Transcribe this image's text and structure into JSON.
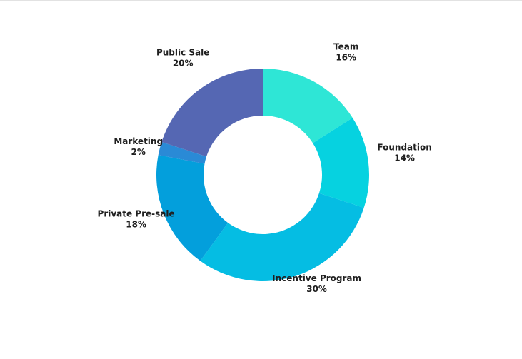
{
  "chart_data": {
    "type": "pie",
    "title": "",
    "variant": "donut",
    "slices": [
      {
        "label": "Team",
        "value": 16,
        "value_label": "16%",
        "color": "#2ee6d6"
      },
      {
        "label": "Foundation",
        "value": 14,
        "value_label": "14%",
        "color": "#06d2e0"
      },
      {
        "label": "Incentive Program",
        "value": 30,
        "value_label": "30%",
        "color": "#05bde3"
      },
      {
        "label": "Private Pre-sale",
        "value": 18,
        "value_label": "18%",
        "color": "#039fdc"
      },
      {
        "label": "Marketing",
        "value": 2,
        "value_label": "2%",
        "color": "#2a8ad6"
      },
      {
        "label": "Public Sale",
        "value": 20,
        "value_label": "20%",
        "color": "#5567b3"
      }
    ],
    "legend": "none",
    "start_angle": "12 o'clock",
    "direction": "clockwise"
  }
}
